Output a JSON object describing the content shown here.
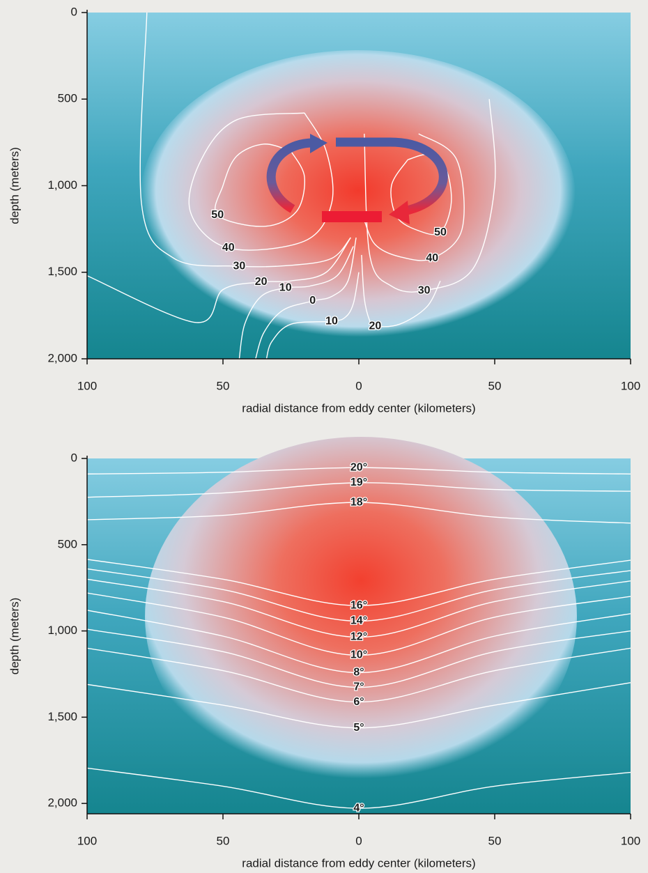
{
  "chart_data": [
    {
      "type": "contour",
      "xlabel": "radial distance from eddy center (kilometers)",
      "ylabel": "depth (meters)",
      "xlim": [
        -100,
        100
      ],
      "ylim": [
        0,
        2000
      ],
      "y_inverted": true,
      "xticks": [
        {
          "value": -100,
          "label": "100"
        },
        {
          "value": -50,
          "label": "50"
        },
        0,
        50,
        100
      ],
      "yticks": [
        0,
        500,
        {
          "value": 1000,
          "label": "1,000"
        },
        {
          "value": 1500,
          "label": "1,500"
        },
        {
          "value": 2000,
          "label": "2,000"
        }
      ],
      "line_color": "#ffffff",
      "contours": [
        {
          "level": 50,
          "x": [
            -25,
            -20,
            -23,
            -35,
            -52,
            -50,
            -45,
            -35,
            -25
          ],
          "y": [
            800,
            950,
            1150,
            1235,
            1170,
            1000,
            830,
            760,
            800
          ]
        },
        {
          "level": 40,
          "x": [
            -20,
            -12,
            -10,
            -20,
            -48,
            -62,
            -58,
            -45,
            -20
          ],
          "y": [
            580,
            800,
            1100,
            1320,
            1360,
            1150,
            850,
            620,
            580
          ]
        },
        {
          "level": 30,
          "x": [
            -3,
            -10,
            -25,
            -44,
            -68,
            -80,
            -78
          ],
          "y": [
            1300,
            1420,
            1460,
            1465,
            1420,
            1100,
            0
          ]
        },
        {
          "level": 20,
          "x": [
            -3,
            -12,
            -25,
            -36,
            -50,
            -60,
            -100
          ],
          "y": [
            1300,
            1500,
            1550,
            1557,
            1600,
            1790,
            1520
          ]
        },
        {
          "level": 10,
          "x": [
            -2,
            -8,
            -18,
            -27,
            -36,
            -42,
            -44
          ],
          "y": [
            1350,
            1520,
            1580,
            1590,
            1640,
            1800,
            2000
          ]
        },
        {
          "level": 0,
          "x": [
            -1,
            -4,
            -10,
            -17,
            -28,
            -35,
            -38
          ],
          "y": [
            1300,
            1550,
            1640,
            1666,
            1720,
            1850,
            2000
          ]
        },
        {
          "level": 10,
          "x": [
            0,
            -2,
            -5,
            -10,
            -25,
            -32,
            -34
          ],
          "y": [
            1500,
            1680,
            1760,
            1783,
            1800,
            1900,
            2000
          ]
        },
        {
          "level": 20,
          "x": [
            1,
            2,
            4,
            6,
            15,
            25,
            30
          ],
          "y": [
            1400,
            1650,
            1780,
            1811,
            1800,
            1700,
            1550
          ]
        },
        {
          "level": 30,
          "x": [
            2,
            4,
            12,
            24,
            42,
            50,
            48
          ],
          "y": [
            700,
            1400,
            1580,
            1606,
            1480,
            1000,
            500
          ]
        },
        {
          "level": 40,
          "x": [
            2,
            6,
            15,
            27,
            38,
            36,
            22
          ],
          "y": [
            1200,
            1340,
            1410,
            1420,
            1250,
            850,
            700
          ]
        },
        {
          "level": 50,
          "x": [
            18,
            12,
            14,
            22,
            30,
            34,
            32,
            26,
            18
          ],
          "y": [
            850,
            1000,
            1180,
            1260,
            1270,
            1100,
            900,
            820,
            850
          ]
        }
      ]
    },
    {
      "type": "isoline",
      "xlabel": "radial distance from eddy center (kilometers)",
      "ylabel": "depth (meters)",
      "xlim": [
        -100,
        100
      ],
      "ylim": [
        0,
        2060
      ],
      "y_inverted": true,
      "xticks": [
        {
          "value": -100,
          "label": "100"
        },
        {
          "value": -50,
          "label": "50"
        },
        0,
        50,
        100
      ],
      "yticks": [
        0,
        500,
        {
          "value": 1000,
          "label": "1,000"
        },
        {
          "value": 1500,
          "label": "1,500"
        },
        {
          "value": 2000,
          "label": "2,000"
        }
      ],
      "line_color": "#ffffff",
      "x": [
        -100,
        -50,
        0,
        50,
        100
      ],
      "isotherms": [
        {
          "level": 20,
          "label": "20°",
          "depths": [
            90,
            80,
            53,
            80,
            90
          ]
        },
        {
          "level": 19,
          "label": "19°",
          "depths": [
            225,
            200,
            141,
            180,
            190
          ]
        },
        {
          "level": 18,
          "label": "18°",
          "depths": [
            355,
            330,
            255,
            340,
            375
          ]
        },
        {
          "level": 16,
          "label": "16°",
          "depths": [
            585,
            700,
            853,
            700,
            590
          ]
        },
        {
          "level": 14,
          "label": "14°",
          "depths": [
            640,
            760,
            943,
            760,
            650
          ]
        },
        {
          "level": 12,
          "label": "12°",
          "depths": [
            700,
            830,
            1036,
            830,
            710
          ]
        },
        {
          "level": 10,
          "label": "10°",
          "depths": [
            780,
            920,
            1141,
            920,
            800
          ]
        },
        {
          "level": 8,
          "label": "8°",
          "depths": [
            880,
            1030,
            1242,
            1030,
            900
          ]
        },
        {
          "level": 7,
          "label": "7°",
          "depths": [
            990,
            1120,
            1327,
            1120,
            1000
          ]
        },
        {
          "level": 6,
          "label": "6°",
          "depths": [
            1100,
            1230,
            1412,
            1230,
            1100
          ]
        },
        {
          "level": 5,
          "label": "5°",
          "depths": [
            1310,
            1430,
            1562,
            1430,
            1300
          ]
        },
        {
          "level": 4,
          "label": "4°",
          "depths": [
            1795,
            1900,
            2028,
            1900,
            1820
          ]
        }
      ]
    }
  ]
}
